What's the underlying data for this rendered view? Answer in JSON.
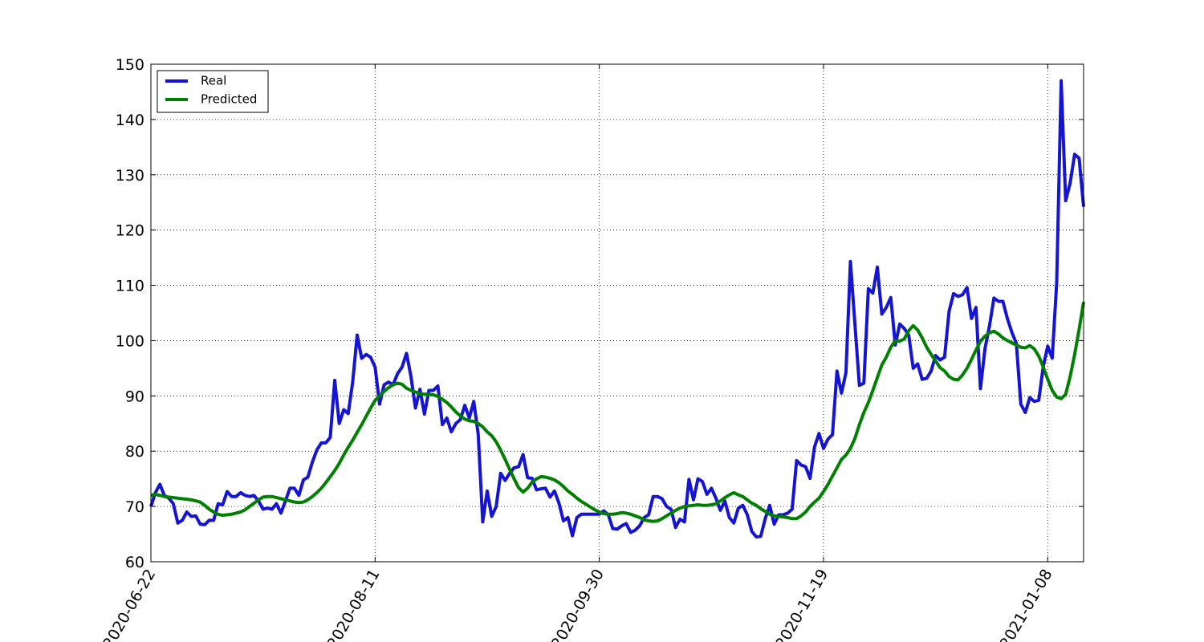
{
  "chart_data": {
    "type": "line",
    "x": [
      "2020-06-22",
      "2020-06-23",
      "2020-06-24",
      "2020-06-25",
      "2020-06-26",
      "2020-06-27",
      "2020-06-28",
      "2020-06-29",
      "2020-06-30",
      "2020-07-01",
      "2020-07-02",
      "2020-07-03",
      "2020-07-04",
      "2020-07-05",
      "2020-07-06",
      "2020-07-07",
      "2020-07-08",
      "2020-07-09",
      "2020-07-10",
      "2020-07-11",
      "2020-07-12",
      "2020-07-13",
      "2020-07-14",
      "2020-07-15",
      "2020-07-16",
      "2020-07-17",
      "2020-07-18",
      "2020-07-19",
      "2020-07-20",
      "2020-07-21",
      "2020-07-22",
      "2020-07-23",
      "2020-07-24",
      "2020-07-25",
      "2020-07-26",
      "2020-07-27",
      "2020-07-28",
      "2020-07-29",
      "2020-07-30",
      "2020-07-31",
      "2020-08-01",
      "2020-08-02",
      "2020-08-03",
      "2020-08-04",
      "2020-08-05",
      "2020-08-06",
      "2020-08-07",
      "2020-08-08",
      "2020-08-09",
      "2020-08-10",
      "2020-08-11",
      "2020-08-12",
      "2020-08-13",
      "2020-08-14",
      "2020-08-15",
      "2020-08-16",
      "2020-08-17",
      "2020-08-18",
      "2020-08-19",
      "2020-08-20",
      "2020-08-21",
      "2020-08-22",
      "2020-08-23",
      "2020-08-24",
      "2020-08-25",
      "2020-08-26",
      "2020-08-27",
      "2020-08-28",
      "2020-08-29",
      "2020-08-30",
      "2020-08-31",
      "2020-09-01",
      "2020-09-02",
      "2020-09-03",
      "2020-09-04",
      "2020-09-05",
      "2020-09-06",
      "2020-09-07",
      "2020-09-08",
      "2020-09-09",
      "2020-09-10",
      "2020-09-11",
      "2020-09-12",
      "2020-09-13",
      "2020-09-14",
      "2020-09-15",
      "2020-09-16",
      "2020-09-17",
      "2020-09-18",
      "2020-09-19",
      "2020-09-20",
      "2020-09-21",
      "2020-09-22",
      "2020-09-23",
      "2020-09-24",
      "2020-09-25",
      "2020-09-26",
      "2020-09-27",
      "2020-09-28",
      "2020-09-29",
      "2020-09-30",
      "2020-10-01",
      "2020-10-02",
      "2020-10-03",
      "2020-10-04",
      "2020-10-05",
      "2020-10-06",
      "2020-10-07",
      "2020-10-08",
      "2020-10-09",
      "2020-10-10",
      "2020-10-11",
      "2020-10-12",
      "2020-10-13",
      "2020-10-14",
      "2020-10-15",
      "2020-10-16",
      "2020-10-17",
      "2020-10-18",
      "2020-10-19",
      "2020-10-20",
      "2020-10-21",
      "2020-10-22",
      "2020-10-23",
      "2020-10-24",
      "2020-10-25",
      "2020-10-26",
      "2020-10-27",
      "2020-10-28",
      "2020-10-29",
      "2020-10-30",
      "2020-10-31",
      "2020-11-01",
      "2020-11-02",
      "2020-11-03",
      "2020-11-04",
      "2020-11-05",
      "2020-11-06",
      "2020-11-07",
      "2020-11-08",
      "2020-11-09",
      "2020-11-10",
      "2020-11-11",
      "2020-11-12",
      "2020-11-13",
      "2020-11-14",
      "2020-11-15",
      "2020-11-16",
      "2020-11-17",
      "2020-11-18",
      "2020-11-19",
      "2020-11-20",
      "2020-11-21",
      "2020-11-22",
      "2020-11-23",
      "2020-11-24",
      "2020-11-25",
      "2020-11-26",
      "2020-11-27",
      "2020-11-28",
      "2020-11-29",
      "2020-11-30",
      "2020-12-01",
      "2020-12-02",
      "2020-12-03",
      "2020-12-04",
      "2020-12-05",
      "2020-12-06",
      "2020-12-07",
      "2020-12-08",
      "2020-12-09",
      "2020-12-10",
      "2020-12-11",
      "2020-12-12",
      "2020-12-13",
      "2020-12-14",
      "2020-12-15",
      "2020-12-16",
      "2020-12-17",
      "2020-12-18",
      "2020-12-19",
      "2020-12-20",
      "2020-12-21",
      "2020-12-22",
      "2020-12-23",
      "2020-12-24",
      "2020-12-25",
      "2020-12-26",
      "2020-12-27",
      "2020-12-28",
      "2020-12-29",
      "2020-12-30",
      "2020-12-31",
      "2021-01-01",
      "2021-01-02",
      "2021-01-03",
      "2021-01-04",
      "2021-01-05",
      "2021-01-06",
      "2021-01-07",
      "2021-01-08",
      "2021-01-09",
      "2021-01-10",
      "2021-01-11",
      "2021-01-12",
      "2021-01-13",
      "2021-01-14",
      "2021-01-15",
      "2021-01-16"
    ],
    "series": [
      {
        "name": "Real",
        "color": "#1414d2",
        "values": [
          70,
          72.5,
          74,
          72,
          71.5,
          70.5,
          67,
          67.5,
          69,
          68.2,
          68.3,
          66.8,
          66.7,
          67.5,
          67.5,
          70.5,
          70.3,
          72.7,
          71.8,
          71.8,
          72.5,
          72,
          71.8,
          72,
          71,
          69.5,
          69.7,
          69.5,
          70.5,
          68.8,
          71,
          73.3,
          73.3,
          72,
          74.8,
          75.3,
          78,
          80.2,
          81.5,
          81.5,
          82.5,
          92.8,
          85,
          87.5,
          86.8,
          92.5,
          101,
          96.8,
          97.5,
          97,
          95.2,
          88.5,
          92,
          92.5,
          92,
          94,
          95.2,
          97.7,
          93.5,
          87.8,
          91.2,
          86.7,
          91,
          91,
          91.8,
          84.8,
          86,
          83.5,
          85,
          85.7,
          88.3,
          86,
          89,
          83,
          67.2,
          72.8,
          68.2,
          70,
          76,
          74.7,
          76,
          77,
          77.2,
          79.4,
          75.2,
          75.1,
          73,
          73.2,
          73.3,
          71.7,
          72.8,
          70.6,
          67.4,
          68,
          64.7,
          68,
          68.6,
          68.6,
          68.6,
          68.6,
          68.6,
          69.2,
          68.5,
          66,
          65.9,
          66.5,
          66.9,
          65.3,
          65.7,
          66.5,
          68,
          68.5,
          71.8,
          71.8,
          71.4,
          70,
          69.5,
          66.2,
          67.7,
          67.2,
          74.9,
          71.2,
          75,
          74.5,
          72.2,
          73.3,
          71.5,
          69.3,
          71,
          68,
          67,
          69.7,
          70.2,
          68.5,
          65.5,
          64.5,
          64.6,
          67.8,
          70.2,
          66.8,
          68.5,
          68.5,
          68.8,
          69.5,
          78.3,
          77.5,
          77.2,
          75.1,
          80.8,
          83.2,
          80.5,
          82.2,
          83,
          94.5,
          90.5,
          94.2,
          114.3,
          103,
          91.9,
          92.3,
          109.4,
          108.6,
          113.3,
          104.8,
          106,
          107.8,
          99.2,
          103,
          102.2,
          101,
          95,
          95.8,
          93,
          93.2,
          94.5,
          97.3,
          96.5,
          97,
          105.3,
          108.5,
          108,
          108.3,
          109.6,
          104,
          106,
          91.3,
          98.5,
          102.6,
          107.7,
          107.1,
          107.1,
          104,
          101.5,
          99.5,
          88.5,
          87,
          89.7,
          89,
          89.2,
          95.3,
          99,
          96.8,
          110.5,
          147,
          125.3,
          128.5,
          133.7,
          133,
          124.2
        ]
      },
      {
        "name": "Predicted",
        "color": "#008000",
        "values": [
          72,
          72.2,
          72,
          71.8,
          71.7,
          71.6,
          71.5,
          71.4,
          71.3,
          71.2,
          71,
          70.8,
          70.2,
          69.5,
          69,
          68.6,
          68.4,
          68.5,
          68.6,
          68.8,
          69,
          69.4,
          70,
          70.6,
          71.2,
          71.7,
          71.8,
          71.8,
          71.6,
          71.4,
          71.2,
          71,
          70.8,
          70.7,
          70.8,
          71.2,
          71.8,
          72.5,
          73.3,
          74.3,
          75.4,
          76.5,
          77.8,
          79.3,
          80.7,
          82,
          83.4,
          84.8,
          86.3,
          87.8,
          89.2,
          90,
          90.8,
          91.5,
          92,
          92.3,
          92.1,
          91.4,
          91,
          90.7,
          90.4,
          90.3,
          90.3,
          90.2,
          89.9,
          89.4,
          88.8,
          88,
          87.1,
          86.4,
          85.8,
          85.5,
          85.4,
          85,
          84.4,
          83.5,
          82.8,
          81.7,
          80.2,
          78.5,
          76.7,
          75,
          73.4,
          72.6,
          73.3,
          74.4,
          75,
          75.4,
          75.3,
          75.1,
          74.8,
          74.3,
          73.6,
          72.8,
          72.2,
          71.5,
          70.9,
          70.4,
          69.9,
          69.4,
          69,
          68.7,
          68.6,
          68.6,
          68.7,
          68.9,
          68.8,
          68.6,
          68.3,
          68,
          67.6,
          67.4,
          67.3,
          67.4,
          67.8,
          68.3,
          68.8,
          69.3,
          69.7,
          70,
          70.1,
          70.2,
          70.3,
          70.2,
          70.2,
          70.3,
          70.5,
          71,
          71.6,
          72.1,
          72.5,
          72.1,
          71.8,
          71.2,
          70.6,
          70.2,
          69.6,
          69.1,
          68.6,
          68.3,
          68.2,
          68.1,
          68,
          67.8,
          67.8,
          68.3,
          69,
          70,
          70.8,
          71.5,
          72.7,
          74,
          75.5,
          77,
          78.5,
          79.3,
          80.5,
          82.3,
          84.8,
          87,
          88.8,
          91,
          93.3,
          95.6,
          97,
          98.8,
          100,
          99.9,
          100.3,
          101.8,
          102.7,
          101.9,
          100.5,
          98.8,
          97.5,
          96.3,
          95.1,
          94.5,
          93.5,
          93,
          92.9,
          93.8,
          95,
          96.6,
          98.3,
          99.9,
          100.8,
          101.4,
          101.7,
          101.2,
          100.5,
          100,
          99.6,
          99.2,
          98.8,
          98.7,
          99.1,
          98.5,
          97.2,
          95.2,
          93,
          91,
          89.8,
          89.5,
          90.3,
          93.5,
          97.5,
          102,
          107
        ]
      }
    ],
    "xlim": [
      "2020-06-22",
      "2021-01-16"
    ],
    "xticks": [
      "2020-06-22",
      "2020-08-11",
      "2020-09-30",
      "2020-11-19",
      "2021-01-08"
    ],
    "ylim": [
      60,
      150
    ],
    "yticks": [
      60,
      70,
      80,
      90,
      100,
      110,
      120,
      130,
      140,
      150
    ],
    "grid": true,
    "legend": "upper-left"
  }
}
